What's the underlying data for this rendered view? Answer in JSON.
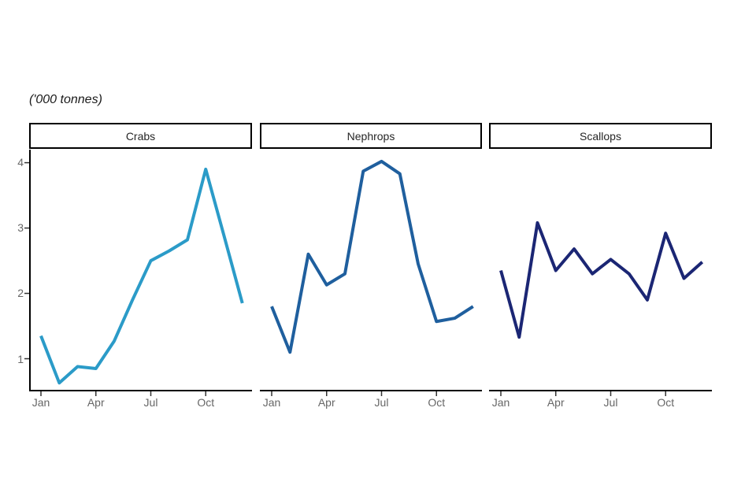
{
  "chart_data": {
    "type": "line",
    "title": "('000 tonnes)",
    "xlabel": "",
    "ylabel": "('000 tonnes)",
    "months": [
      "Jan",
      "Feb",
      "Mar",
      "Apr",
      "May",
      "Jun",
      "Jul",
      "Aug",
      "Sep",
      "Oct",
      "Nov",
      "Dec"
    ],
    "x_tick_labels": [
      "Jan",
      "Apr",
      "Jul",
      "Oct"
    ],
    "x_tick_month_indexes": [
      0,
      3,
      6,
      9
    ],
    "y_ticks": [
      4,
      3,
      2,
      1
    ],
    "y_tick_labels": [
      "4",
      "3",
      "2",
      "1"
    ],
    "ylim": [
      0.5,
      4.2
    ],
    "grid": "off",
    "legend": "none",
    "facets": [
      {
        "name": "Crabs",
        "color": "#2B9BC8",
        "values": [
          1.35,
          0.63,
          0.88,
          0.85,
          1.27,
          1.9,
          2.5,
          2.65,
          2.82,
          3.9,
          2.88,
          1.85
        ]
      },
      {
        "name": "Nephrops",
        "color": "#1F5F9E",
        "values": [
          1.8,
          1.1,
          2.6,
          2.13,
          2.3,
          3.87,
          4.02,
          3.83,
          2.45,
          1.57,
          1.62,
          1.8
        ]
      },
      {
        "name": "Scallops",
        "color": "#1B2674",
        "values": [
          2.35,
          1.33,
          3.08,
          2.35,
          2.68,
          2.3,
          2.52,
          2.3,
          1.9,
          2.92,
          2.23,
          2.48
        ]
      }
    ]
  },
  "colors": {
    "axis_line": "#000000",
    "tick_mark": "#333333",
    "axis_text": "#666666",
    "strip_border": "#000000",
    "strip_text": "#262626",
    "title_text": "#1a1a1a",
    "background": "#ffffff"
  }
}
